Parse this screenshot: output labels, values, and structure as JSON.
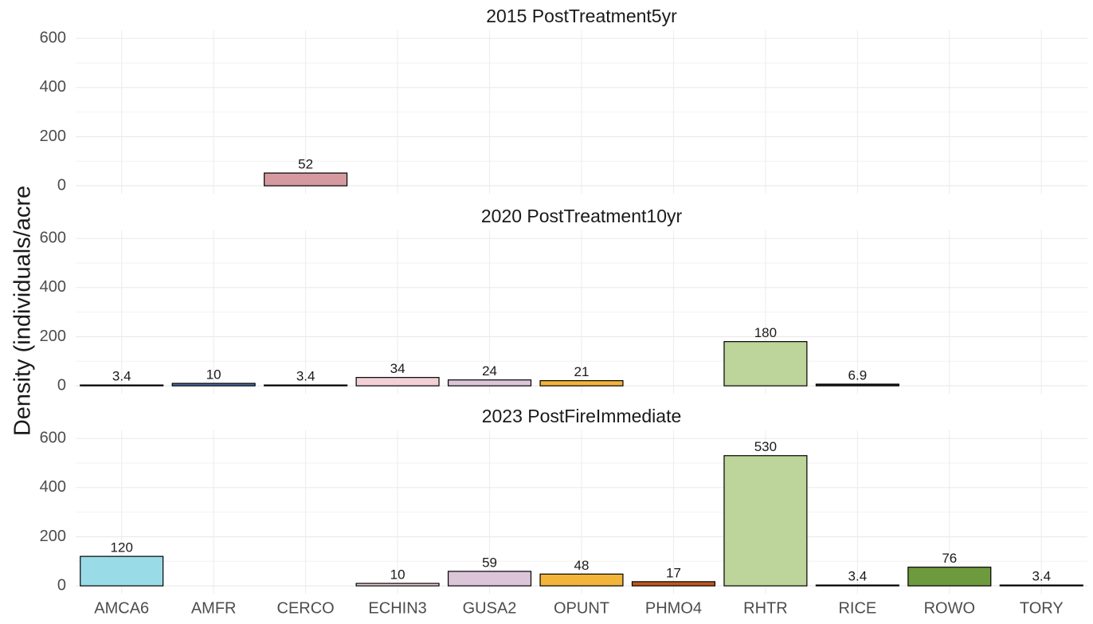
{
  "y_label": "Density (individuals/acre",
  "categories": [
    "AMCA6",
    "AMFR",
    "CERCO",
    "ECHIN3",
    "GUSA2",
    "OPUNT",
    "PHMO4",
    "RHTR",
    "RICE",
    "ROWO",
    "TORY"
  ],
  "colors": [
    "#9adbe8",
    "#4a6fa5",
    "#d49aa0",
    "#f2d0d6",
    "#dcc5d8",
    "#f3b43a",
    "#c0581b",
    "#bdd49a",
    "#222222",
    "#6e9a3e",
    "#333333"
  ],
  "chart_data": [
    {
      "type": "bar",
      "title": "2015 PostTreatment5yr",
      "values": [
        null,
        null,
        52,
        null,
        null,
        null,
        null,
        null,
        null,
        null,
        null
      ],
      "ylim": [
        -32,
        633
      ],
      "yticks": [
        0,
        200,
        400,
        600
      ],
      "minor_yticks": [
        100,
        300,
        500
      ],
      "grid": true
    },
    {
      "type": "bar",
      "title": "2020 PostTreatment10yr",
      "values": [
        3.4,
        10,
        3.4,
        34,
        24,
        21,
        null,
        180,
        6.9,
        null,
        null
      ],
      "ylim": [
        -32,
        633
      ],
      "yticks": [
        0,
        200,
        400,
        600
      ],
      "minor_yticks": [
        100,
        300,
        500
      ],
      "grid": true
    },
    {
      "type": "bar",
      "title": "2023 PostFireImmediate",
      "values": [
        120,
        null,
        null,
        10,
        59,
        48,
        17,
        530,
        3.4,
        76,
        3.4
      ],
      "ylim": [
        -32,
        633
      ],
      "yticks": [
        0,
        200,
        400,
        600
      ],
      "minor_yticks": [
        100,
        300,
        500
      ],
      "grid": true
    }
  ]
}
